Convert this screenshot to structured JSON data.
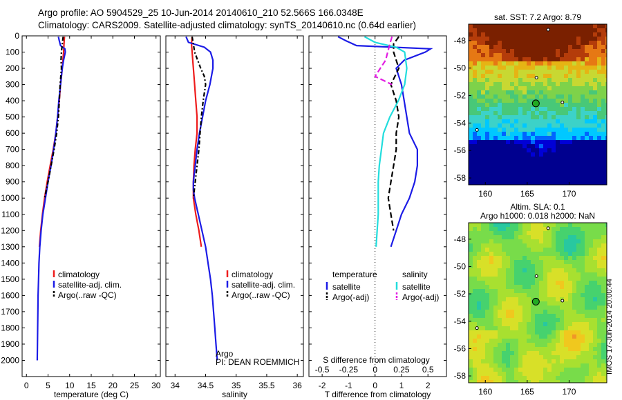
{
  "header": {
    "line1": "Argo profile: AO 5904529_25 10-Jun-2014 20140610_210 52.566S 166.0348E",
    "line2": "Climatology: CARS2009. Satellite-adjusted climatology: synTS_20140610.nc (0.64d earlier)"
  },
  "stamp": "IMOS 17-Jun-2014 20:00:44",
  "colors": {
    "climatology": "#ee1c1c",
    "satellite": "#1c1ce6",
    "argo": "#000000",
    "sat_salinity": "#22dddd",
    "argo_adj_salinity": "#e21ce2",
    "map_marker": "#22aa22"
  },
  "chart_data": [
    {
      "type": "line",
      "id": "temperature",
      "xlabel": "temperature (deg C)",
      "ylim": [
        0,
        2100
      ],
      "xlim": [
        -1,
        31
      ],
      "xticks": [
        0,
        5,
        10,
        15,
        20,
        25,
        30
      ],
      "yticks": [
        0,
        100,
        200,
        300,
        400,
        500,
        600,
        700,
        800,
        900,
        1000,
        1100,
        1200,
        1300,
        1400,
        1500,
        1600,
        1700,
        1800,
        1900,
        2000
      ],
      "y_reversed": true,
      "legend": [
        "climatology",
        "satellite-adj. clim.",
        "Argo(..raw -QC)"
      ],
      "series": [
        {
          "name": "climatology",
          "color": "#ee1c1c",
          "dash": "",
          "depth": [
            5,
            50,
            100,
            200,
            300,
            400,
            500,
            600,
            700,
            800,
            900,
            1000,
            1100,
            1200,
            1300
          ],
          "values": [
            8.8,
            8.7,
            8.6,
            8.3,
            7.9,
            7.6,
            7.2,
            6.8,
            6.2,
            5.5,
            4.8,
            4.2,
            3.7,
            3.3,
            3.0
          ]
        },
        {
          "name": "satellite-adj. clim.",
          "color": "#1c1ce6",
          "dash": "",
          "depth": [
            5,
            30,
            60,
            80,
            100,
            150,
            200,
            300,
            400,
            500,
            600,
            700,
            800,
            900,
            1000,
            1100,
            1200,
            1300,
            1400,
            1500,
            1600,
            1700,
            1800,
            1900,
            2000
          ],
          "values": [
            7.4,
            7.6,
            7.9,
            8.9,
            9.0,
            8.6,
            8.3,
            7.9,
            7.5,
            7.2,
            6.8,
            6.3,
            5.7,
            5.0,
            4.4,
            3.8,
            3.4,
            3.1,
            2.9,
            2.8,
            2.7,
            2.65,
            2.6,
            2.55,
            2.5
          ]
        },
        {
          "name": "Argo(..raw -QC)",
          "color": "#000000",
          "dash": "6,3,2,3",
          "depth": [
            5,
            50,
            100,
            150,
            200,
            300,
            400,
            500,
            600,
            700,
            800,
            900,
            1000
          ],
          "values": [
            8.5,
            8.3,
            8.1,
            8.0,
            8.1,
            7.8,
            7.6,
            7.4,
            7.0,
            6.4,
            5.7,
            5.0,
            4.2
          ]
        }
      ]
    },
    {
      "type": "line",
      "id": "salinity",
      "xlabel": "salinity",
      "ylim": [
        0,
        2100
      ],
      "xlim": [
        33.85,
        36.1
      ],
      "xticks": [
        34,
        34.5,
        35,
        35.5,
        36
      ],
      "y_reversed": true,
      "legend": [
        "climatology",
        "satellite-adj. clim.",
        "Argo(..raw -QC)"
      ],
      "annotation": [
        "Argo",
        "PI: DEAN ROEMMICH"
      ],
      "series": [
        {
          "name": "climatology",
          "color": "#ee1c1c",
          "dash": "",
          "depth": [
            5,
            50,
            100,
            200,
            300,
            400,
            500,
            600,
            700,
            800,
            900,
            1000,
            1100,
            1200,
            1300
          ],
          "values": [
            34.28,
            34.27,
            34.28,
            34.3,
            34.32,
            34.34,
            34.36,
            34.36,
            34.33,
            34.31,
            34.3,
            34.3,
            34.34,
            34.39,
            34.43
          ]
        },
        {
          "name": "satellite-adj. clim.",
          "color": "#1c1ce6",
          "dash": "",
          "depth": [
            5,
            40,
            70,
            100,
            150,
            200,
            300,
            400,
            500,
            600,
            700,
            800,
            900,
            950,
            1000,
            1100,
            1200,
            1300,
            1400,
            1500,
            1600,
            1700,
            1800,
            1900,
            2000
          ],
          "values": [
            34.18,
            34.22,
            34.48,
            34.58,
            34.62,
            34.62,
            34.57,
            34.5,
            34.45,
            34.4,
            34.36,
            34.33,
            34.3,
            34.3,
            34.32,
            34.38,
            34.44,
            34.5,
            34.54,
            34.58,
            34.61,
            34.63,
            34.65,
            34.67,
            34.69
          ]
        },
        {
          "name": "Argo(..raw -QC)",
          "color": "#000000",
          "dash": "6,3,2,3",
          "depth": [
            5,
            50,
            100,
            150,
            200,
            250,
            300,
            400,
            500,
            600,
            700,
            800,
            900,
            1000
          ],
          "values": [
            34.28,
            34.3,
            34.32,
            34.37,
            34.42,
            34.48,
            34.5,
            34.46,
            34.43,
            34.41,
            34.39,
            34.36,
            34.33,
            34.3
          ]
        }
      ]
    },
    {
      "type": "line",
      "id": "differences",
      "xlabel": "T difference from climatology",
      "xlabel2": "S difference from climatology",
      "xlim": [
        -2.5,
        2.7
      ],
      "xticks": [
        -2,
        -1,
        0,
        1,
        2
      ],
      "xticks_S": [
        -0.5,
        -0.25,
        0,
        0.25,
        0.5
      ],
      "y_reversed": true,
      "legend": {
        "temperature_header": "temperature",
        "salinity_header": "salinity",
        "temperature": [
          "satellite",
          "Argo(-adj)"
        ],
        "salinity": [
          "satellite",
          "Argo(-adj)"
        ]
      },
      "series": [
        {
          "name": "temperature satellite",
          "color": "#1c1ce6",
          "dash": "",
          "depth": [
            5,
            30,
            60,
            80,
            100,
            150,
            200,
            300,
            400,
            500,
            600,
            700,
            800,
            900,
            1000,
            1100,
            1200,
            1300
          ],
          "values": [
            -1.4,
            -1.1,
            -0.7,
            2.1,
            1.9,
            1.1,
            0.8,
            1.0,
            1.1,
            1.2,
            1.3,
            1.6,
            1.6,
            1.5,
            1.3,
            1.0,
            0.8,
            0.6
          ]
        },
        {
          "name": "temperature Argo(-adj)",
          "color": "#000000",
          "dash": "8,4",
          "depth": [
            5,
            50,
            100,
            150,
            200,
            300,
            400,
            500,
            600,
            700,
            800,
            900,
            1000,
            1100,
            1200
          ],
          "values": [
            0.9,
            0.7,
            0.7,
            0.8,
            0.9,
            0.6,
            0.8,
            0.9,
            0.8,
            0.8,
            0.7,
            0.6,
            0.5,
            0.6,
            0.7
          ]
        },
        {
          "name": "salinity satellite",
          "color": "#22dddd",
          "dash": "",
          "depth": [
            5,
            40,
            70,
            100,
            200,
            300,
            400,
            500,
            600,
            700,
            800,
            900,
            1000,
            1100,
            1200,
            1300
          ],
          "values": [
            -0.1,
            0.0,
            0.2,
            0.28,
            0.3,
            0.28,
            0.22,
            0.14,
            0.08,
            0.06,
            0.04,
            0.03,
            0.03,
            0.03,
            0.02,
            0.01
          ]
        },
        {
          "name": "salinity Argo(-adj)",
          "color": "#e21ce2",
          "dash": "8,4",
          "depth": [
            5,
            50,
            100,
            150,
            200,
            250,
            300
          ],
          "values": [
            0.16,
            0.14,
            0.12,
            0.1,
            0.05,
            0.0,
            0.16
          ]
        }
      ]
    },
    {
      "type": "heatmap",
      "id": "sst_map",
      "title": "sat. SST: 7.2 Argo: 8.79",
      "xticks": [
        160,
        165,
        170
      ],
      "yticks": [
        -48,
        -50,
        -52,
        -54,
        -56,
        -58
      ],
      "xlim": [
        158,
        174.5
      ],
      "ylim": [
        -58.5,
        -46.8
      ],
      "float_position": {
        "lon": 166.03,
        "lat": -52.57
      }
    },
    {
      "type": "heatmap",
      "id": "sla_map",
      "title": "Altim. SLA: 0.1",
      "title2": "Argo h1000: 0.018 h2000: NaN",
      "xticks": [
        160,
        165,
        170
      ],
      "yticks": [
        -48,
        -50,
        -52,
        -54,
        -56,
        -58
      ],
      "xlim": [
        158,
        174.5
      ],
      "ylim": [
        -58.5,
        -46.8
      ],
      "float_position": {
        "lon": 166.03,
        "lat": -52.57
      }
    }
  ]
}
